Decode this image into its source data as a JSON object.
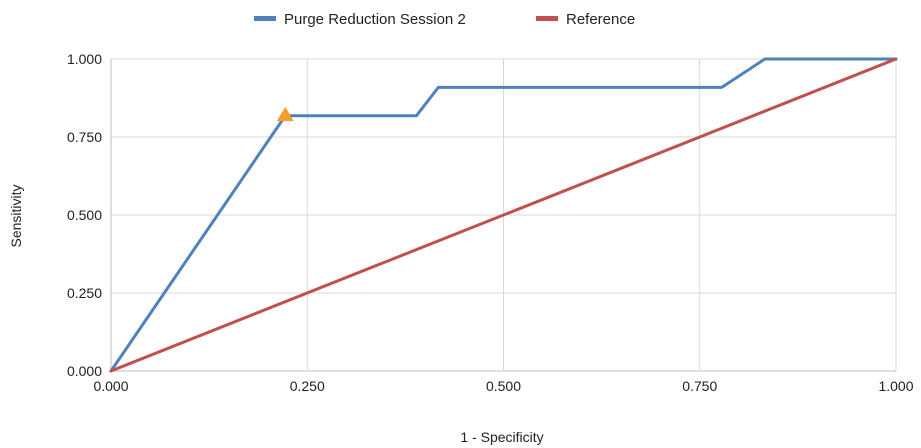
{
  "chart_data": {
    "type": "line",
    "title": "",
    "xlabel": "1 - Specificity",
    "ylabel": "Sensitivity",
    "xlim": [
      0,
      1
    ],
    "ylim": [
      0,
      1
    ],
    "grid": true,
    "legend_position": "top",
    "x_ticks": [
      "0.000",
      "0.250",
      "0.500",
      "0.750",
      "1.000"
    ],
    "y_ticks": [
      "0.000",
      "0.250",
      "0.500",
      "0.750",
      "1.000"
    ],
    "series": [
      {
        "name": "Purge Reduction Session 2",
        "color": "#4f81bd",
        "x": [
          0.0,
          0.222,
          0.389,
          0.417,
          0.778,
          0.833,
          1.0
        ],
        "y": [
          0.0,
          0.818,
          0.818,
          0.909,
          0.909,
          1.0,
          1.0
        ]
      },
      {
        "name": "Reference",
        "color": "#c0504d",
        "x": [
          0.0,
          1.0
        ],
        "y": [
          0.0,
          1.0
        ]
      }
    ],
    "marker": {
      "shape": "triangle",
      "color": "#f0a030",
      "x": 0.222,
      "y": 0.818
    }
  }
}
